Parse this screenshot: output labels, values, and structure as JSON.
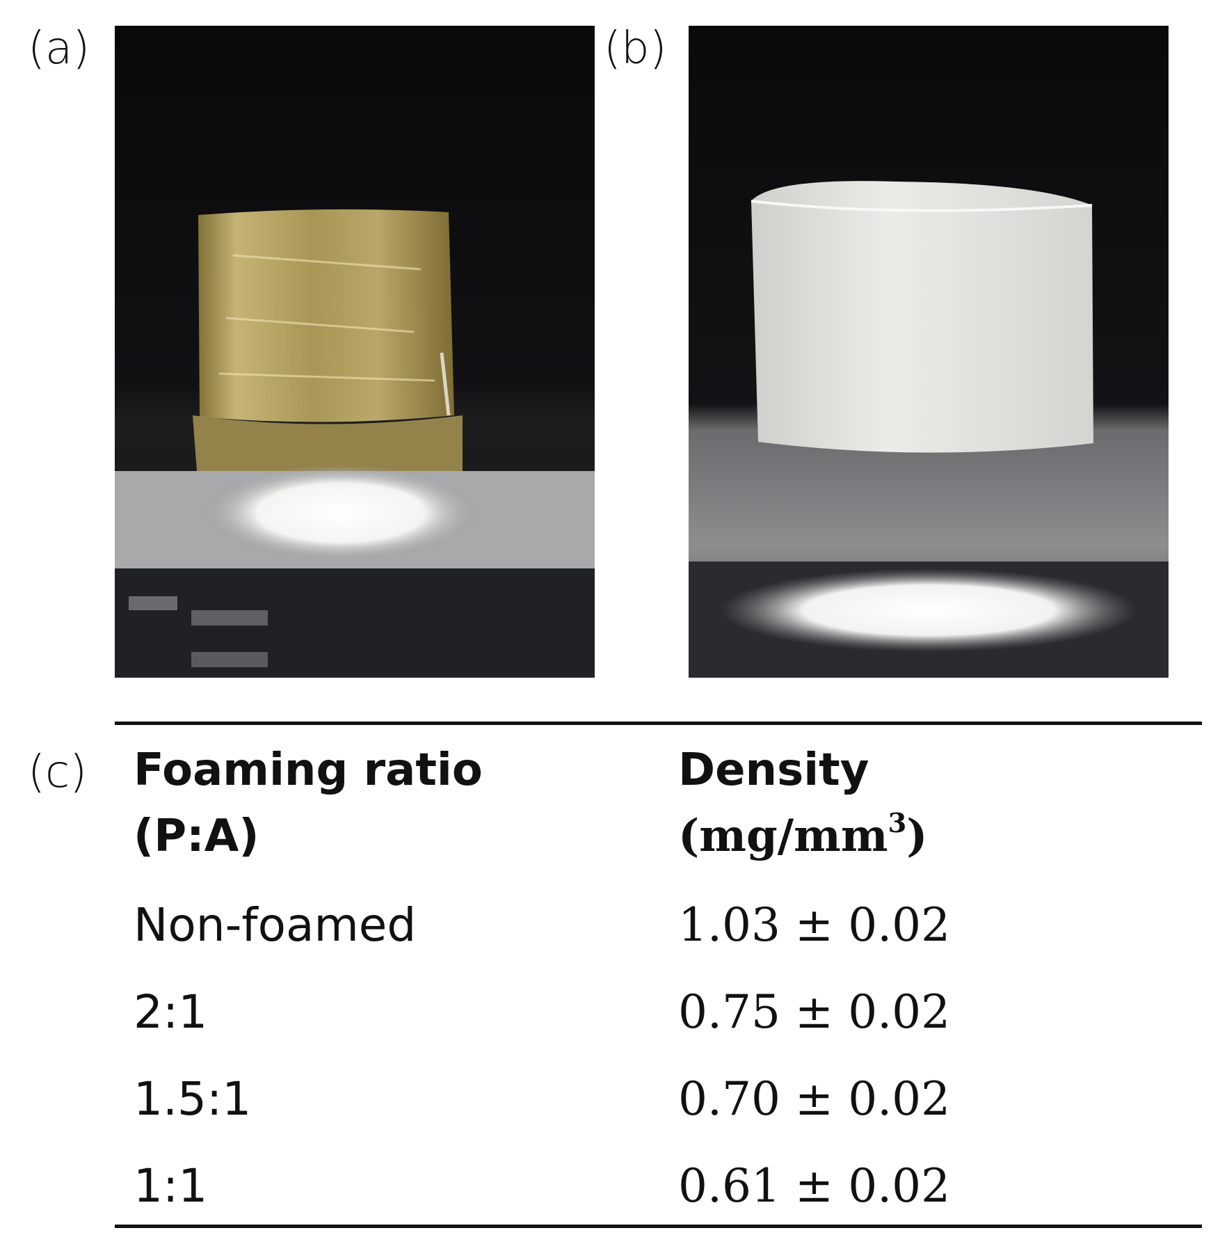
{
  "panels": {
    "a": {
      "label": "(a)"
    },
    "b": {
      "label": "(b)"
    },
    "c": {
      "label": "(c)"
    }
  },
  "table": {
    "headers": {
      "ratio_line1": "Foaming ratio",
      "ratio_line2": "(P:A)",
      "density_line1": "Density",
      "density_unit_base": "(mg/mm",
      "density_unit_exp": "3",
      "density_unit_close": ")"
    },
    "rows": [
      {
        "ratio": "Non-foamed",
        "density": "1.03 ± 0.02"
      },
      {
        "ratio": "2:1",
        "density": "0.75 ± 0.02"
      },
      {
        "ratio": "1.5:1",
        "density": "0.70 ± 0.02"
      },
      {
        "ratio": "1:1",
        "density": "0.61 ± 0.02"
      }
    ]
  },
  "colors": {
    "rule": "#111111",
    "photo_a_sample": "#c9b46a",
    "photo_b_sample": "#e6e6e2",
    "photo_background": "#0c0c0e"
  }
}
